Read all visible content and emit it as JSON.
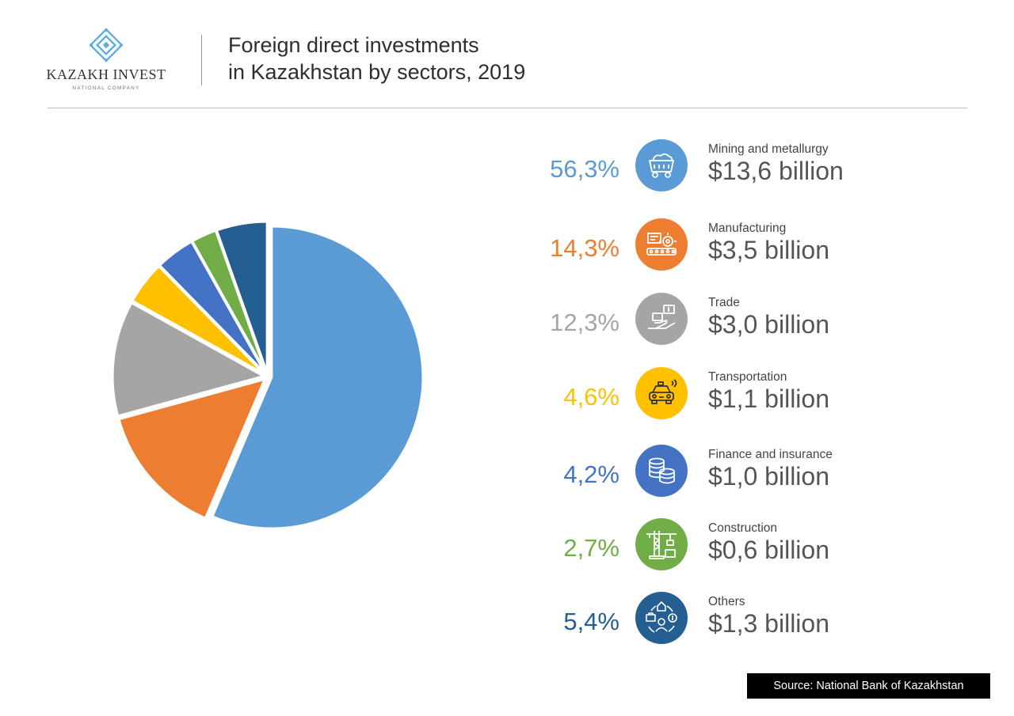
{
  "logo": {
    "name": "KAZAKH INVEST",
    "subtitle": "NATIONAL COMPANY",
    "color": "#5aaee0"
  },
  "title": {
    "line1": "Foreign direct investments",
    "line2": "in Kazakhstan by sectors, 2019"
  },
  "source": "Source: National Bank of Kazakhstan",
  "legend": [
    {
      "pct": "56,3%",
      "label": "Mining and metallurgy",
      "amount": "$13,6 billion",
      "color": "#5b9bd5",
      "icon": "mine-cart-icon"
    },
    {
      "pct": "14,3%",
      "label": "Manufacturing",
      "amount": "$3,5 billion",
      "color": "#ed7d31",
      "icon": "factory-gear-icon"
    },
    {
      "pct": "12,3%",
      "label": "Trade",
      "amount": "$3,0 billion",
      "color": "#a5a5a5",
      "icon": "hand-money-icon"
    },
    {
      "pct": "4,6%",
      "label": "Transportation",
      "amount": "$1,1 billion",
      "color": "#ffc000",
      "icon": "car-icon"
    },
    {
      "pct": "4,2%",
      "label": "Finance and insurance",
      "amount": "$1,0 billion",
      "color": "#4472c4",
      "icon": "coins-icon"
    },
    {
      "pct": "2,7%",
      "label": "Construction",
      "amount": "$0,6 billion",
      "color": "#70ad47",
      "icon": "crane-icon"
    },
    {
      "pct": "5,4%",
      "label": "Others",
      "amount": "$1,3 billion",
      "color": "#255e91",
      "icon": "business-network-icon"
    }
  ],
  "chart_data": {
    "type": "pie",
    "title": "Foreign direct investments in Kazakhstan by sectors, 2019",
    "categories": [
      "Mining and metallurgy",
      "Manufacturing",
      "Trade",
      "Transportation",
      "Finance and insurance",
      "Construction",
      "Others"
    ],
    "values": [
      56.3,
      14.3,
      12.3,
      4.6,
      4.2,
      2.7,
      5.4
    ],
    "amounts_billion_usd": [
      13.6,
      3.5,
      3.0,
      1.1,
      1.0,
      0.6,
      1.3
    ],
    "colors": [
      "#5b9bd5",
      "#ed7d31",
      "#a5a5a5",
      "#ffc000",
      "#4472c4",
      "#70ad47",
      "#255e91"
    ],
    "legend_placement": "right"
  }
}
